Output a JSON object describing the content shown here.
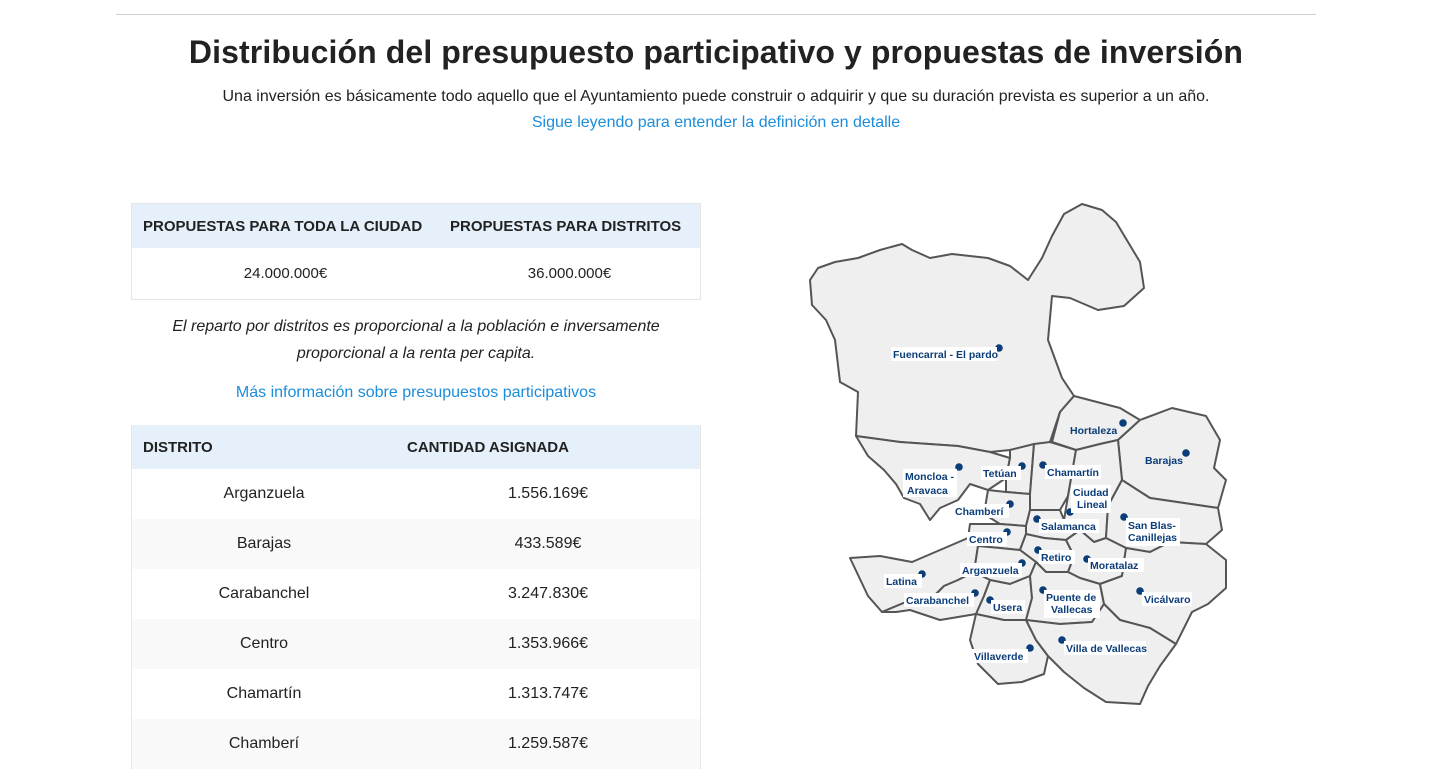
{
  "page": {
    "title": "Distribución del presupuesto participativo y propuestas de inversión",
    "intro": "Una inversión es básicamente todo aquello que el Ayuntamiento puede construir o adquirir y que su duración prevista es superior a un año.",
    "intro_link": "Sigue leyendo para entender la definición en detalle"
  },
  "budget": {
    "headers": [
      "PROPUESTAS PARA TODA LA CIUDAD",
      "PROPUESTAS PARA DISTRITOS"
    ],
    "values": [
      "24.000.000€",
      "36.000.000€"
    ]
  },
  "note": "El reparto por distritos es proporcional a la población e inversamente proporcional a la renta per capita.",
  "more_link": "Más información sobre presupuestos participativos",
  "districts": {
    "headers": [
      "DISTRITO",
      "CANTIDAD ASIGNADA"
    ],
    "rows": [
      {
        "name": "Arganzuela",
        "amount": "1.556.169€"
      },
      {
        "name": "Barajas",
        "amount": "433.589€"
      },
      {
        "name": "Carabanchel",
        "amount": "3.247.830€"
      },
      {
        "name": "Centro",
        "amount": "1.353.966€"
      },
      {
        "name": "Chamartín",
        "amount": "1.313.747€"
      },
      {
        "name": "Chamberí",
        "amount": "1.259.587€"
      }
    ]
  },
  "map": {
    "labels": {
      "fuencarral": "Fuencarral - El pardo",
      "hortaleza": "Hortaleza",
      "barajas": "Barajas",
      "moncloa_1": "Moncloa -",
      "moncloa_2": "Aravaca",
      "tetuan": "Tetúan",
      "chamartin": "Chamartín",
      "ciudad_lineal_1": "Ciudad",
      "ciudad_lineal_2": "Lineal",
      "chamberi": "Chamberí",
      "salamanca": "Salamanca",
      "san_blas_1": "San Blas-",
      "san_blas_2": "Canillejas",
      "centro": "Centro",
      "retiro": "Retiro",
      "moratalaz": "Moratalaz",
      "latina": "Latina",
      "arganzuela": "Arganzuela",
      "carabanchel": "Carabanchel",
      "usera": "Usera",
      "puente_1": "Puente de",
      "puente_2": "Vallecas",
      "vicalvaro": "Vicálvaro",
      "villaverde": "Villaverde",
      "villa_vallecas": "Villa de Vallecas"
    }
  },
  "colors": {
    "link": "#1c8ddb",
    "table_header_bg": "#e5f0fb",
    "map_fill": "#efefef",
    "map_marker": "#0b3d78"
  }
}
